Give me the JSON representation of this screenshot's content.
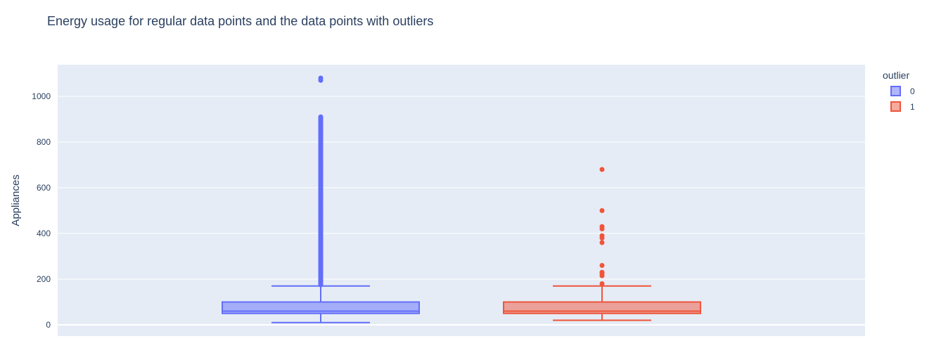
{
  "chart_data": {
    "type": "box",
    "title": "Energy usage for regular data points and the data points with outliers",
    "xlabel": "",
    "ylabel": "Appliances",
    "ylim": [
      -50,
      1120
    ],
    "yticks": [
      0,
      200,
      400,
      600,
      800,
      1000
    ],
    "grid": true,
    "legend": {
      "title": "outlier",
      "position": "top-right"
    },
    "series": [
      {
        "name": "0",
        "color": "#636efa",
        "min": 10,
        "q1": 50,
        "median": 60,
        "q3": 100,
        "max": 170,
        "outliers_range": [
          175,
          910
        ],
        "outliers": [
          1070,
          1080
        ]
      },
      {
        "name": "1",
        "color": "#EF553B",
        "min": 20,
        "q1": 50,
        "median": 60,
        "q3": 100,
        "max": 170,
        "outliers": [
          180,
          215,
          225,
          230,
          260,
          360,
          380,
          390,
          420,
          430,
          500,
          680
        ]
      }
    ]
  }
}
